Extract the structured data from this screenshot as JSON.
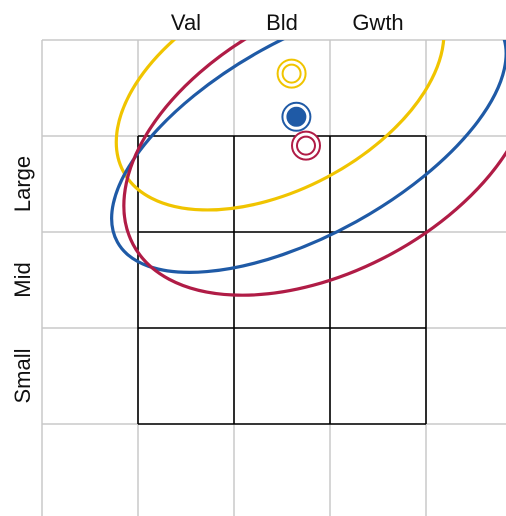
{
  "chart_data": {
    "type": "style-box",
    "columns": [
      "Val",
      "Bld",
      "Gwth"
    ],
    "rows": [
      "Large",
      "Mid",
      "Small"
    ],
    "grid_color": "#c8c8c8",
    "box_color": "#000000",
    "markers": [
      {
        "name": "",
        "color": "#f0c400",
        "x": 1.6,
        "y": 3.65,
        "filled": false
      },
      {
        "name": "",
        "color": "#1f5aa6",
        "x": 1.65,
        "y": 3.2,
        "filled": true
      },
      {
        "name": "",
        "color": "#b01c46",
        "x": 1.75,
        "y": 2.9,
        "filled": false
      }
    ],
    "ellipses": [
      {
        "name": "",
        "color": "#f0c400",
        "cx": 1.48,
        "cy": 3.5,
        "rx": 1.85,
        "ry": 1.05,
        "angle": -28
      },
      {
        "name": "",
        "color": "#1f5aa6",
        "cx": 1.78,
        "cy": 3.0,
        "rx": 2.28,
        "ry": 1.02,
        "angle": -29
      },
      {
        "name": "",
        "color": "#b01c46",
        "cx": 1.98,
        "cy": 2.95,
        "rx": 2.3,
        "ry": 1.35,
        "angle": -28
      }
    ]
  }
}
